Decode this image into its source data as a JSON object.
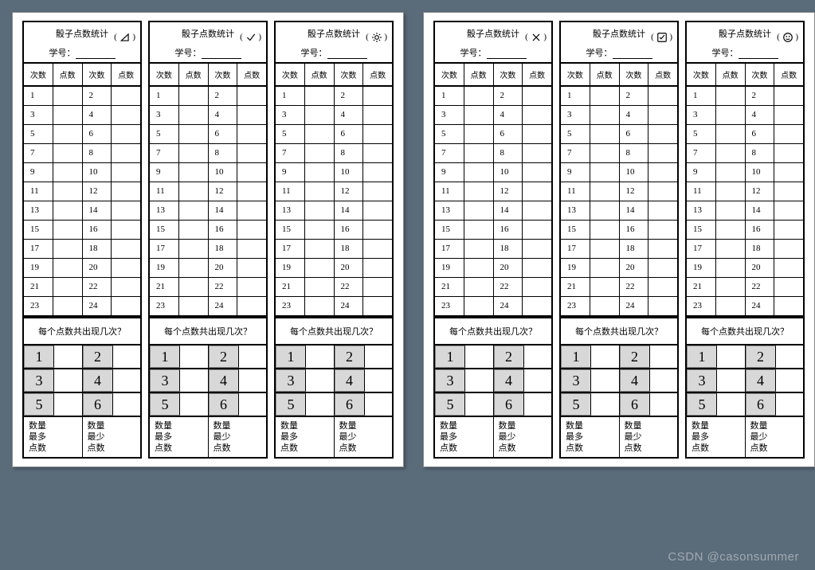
{
  "background_color": "#5a6b7a",
  "page_color": "#ffffff",
  "slip_border": "#000000",
  "pip_cell_bg": "#d8d8d8",
  "watermark": "CSDN @casonsummer",
  "slip_template": {
    "title": "骰子点数统计",
    "sid_label": "学号：",
    "col_headers": [
      "次数",
      "点数",
      "次数",
      "点数"
    ],
    "rows": [
      [
        "1",
        "",
        "2",
        ""
      ],
      [
        "3",
        "",
        "4",
        ""
      ],
      [
        "5",
        "",
        "6",
        ""
      ],
      [
        "7",
        "",
        "8",
        ""
      ],
      [
        "9",
        "",
        "10",
        ""
      ],
      [
        "11",
        "",
        "12",
        ""
      ],
      [
        "13",
        "",
        "14",
        ""
      ],
      [
        "15",
        "",
        "16",
        ""
      ],
      [
        "17",
        "",
        "18",
        ""
      ],
      [
        "19",
        "",
        "20",
        ""
      ],
      [
        "21",
        "",
        "22",
        ""
      ],
      [
        "23",
        "",
        "24",
        ""
      ]
    ],
    "question": "每个点数共出现几次？",
    "pips": [
      [
        "1",
        "2"
      ],
      [
        "3",
        "4"
      ],
      [
        "5",
        "6"
      ]
    ],
    "summary": [
      [
        "数量",
        "数量"
      ],
      [
        "最多",
        "最少"
      ],
      [
        "点数",
        "点数"
      ]
    ]
  },
  "pages": [
    {
      "slips": [
        {
          "icon": "triangle"
        },
        {
          "icon": "check"
        },
        {
          "icon": "sun"
        }
      ]
    },
    {
      "slips": [
        {
          "icon": "x"
        },
        {
          "icon": "box-check"
        },
        {
          "icon": "smile"
        }
      ]
    }
  ]
}
